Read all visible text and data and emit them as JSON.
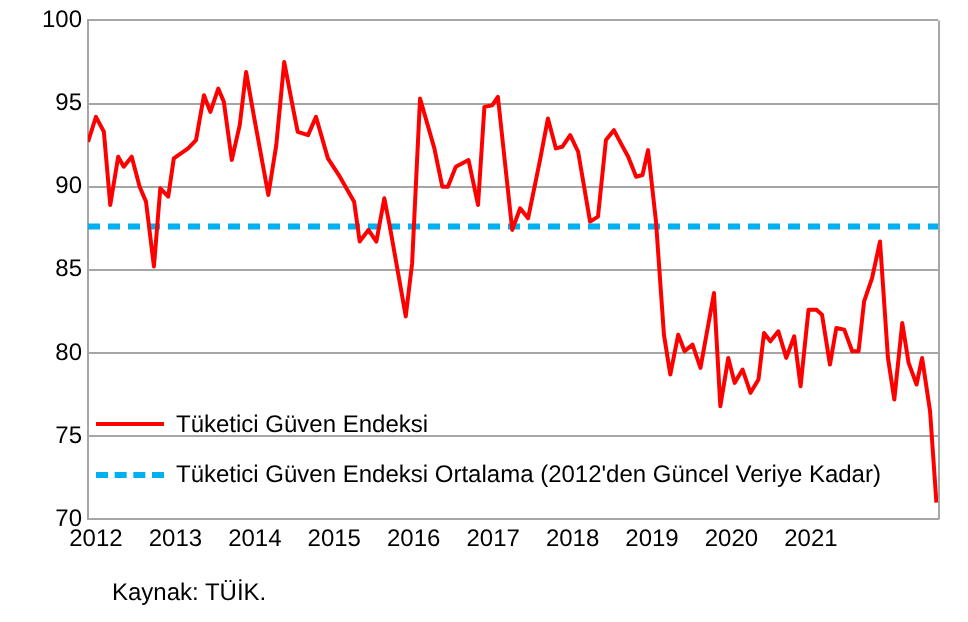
{
  "chart_data": {
    "type": "line",
    "xlim": [
      2011.9,
      2022.6
    ],
    "xticks": [
      2012,
      2013,
      2014,
      2015,
      2016,
      2017,
      2018,
      2019,
      2020,
      2021
    ],
    "ylim": [
      70,
      100
    ],
    "yticks": [
      70,
      75,
      80,
      85,
      90,
      95,
      100
    ],
    "grid": "y",
    "legend": "bottom left",
    "marker": "none",
    "line_style": "solid",
    "series": [
      {
        "name": "Tüketici Güven Endeksi",
        "color": "#ff0000",
        "x": [
          2011.9,
          2012.0,
          2012.1,
          2012.18,
          2012.28,
          2012.35,
          2012.45,
          2012.55,
          2012.63,
          2012.73,
          2012.81,
          2012.91,
          2012.98,
          2013.16,
          2013.26,
          2013.36,
          2013.44,
          2013.54,
          2013.61,
          2013.71,
          2013.81,
          2013.89,
          2013.99,
          2014.17,
          2014.27,
          2014.37,
          2014.47,
          2014.54,
          2014.67,
          2014.77,
          2014.92,
          2015.07,
          2015.25,
          2015.32,
          2015.43,
          2015.53,
          2015.63,
          2015.7,
          2015.9,
          2015.98,
          2016.08,
          2016.26,
          2016.36,
          2016.43,
          2016.53,
          2016.69,
          2016.81,
          2016.89,
          2016.99,
          2017.06,
          2017.24,
          2017.34,
          2017.44,
          2017.59,
          2017.69,
          2017.79,
          2017.87,
          2017.97,
          2018.07,
          2018.22,
          2018.32,
          2018.42,
          2018.52,
          2018.62,
          2018.7,
          2018.8,
          2018.88,
          2018.95,
          2019.05,
          2019.15,
          2019.23,
          2019.33,
          2019.41,
          2019.51,
          2019.61,
          2019.78,
          2019.86,
          2019.96,
          2020.04,
          2020.14,
          2020.24,
          2020.34,
          2020.41,
          2020.49,
          2020.59,
          2020.69,
          2020.79,
          2020.87,
          2020.97,
          2021.07,
          2021.14,
          2021.24,
          2021.32,
          2021.42,
          2021.52,
          2021.6,
          2021.67,
          2021.77,
          2021.87,
          2021.97,
          2022.05,
          2022.15,
          2022.23,
          2022.33,
          2022.4,
          2022.5,
          2022.58
        ],
        "values": [
          92.7,
          94.2,
          93.3,
          88.9,
          91.8,
          91.2,
          91.8,
          90.0,
          89.1,
          85.2,
          89.9,
          89.4,
          91.7,
          92.3,
          92.8,
          95.5,
          94.5,
          95.9,
          95.1,
          91.6,
          93.7,
          96.9,
          94.2,
          89.5,
          92.5,
          97.5,
          95.0,
          93.3,
          93.1,
          94.2,
          91.7,
          90.6,
          89.1,
          86.7,
          87.4,
          86.7,
          89.3,
          87.6,
          82.2,
          85.4,
          95.3,
          92.3,
          90.0,
          90.0,
          91.2,
          91.6,
          88.9,
          94.8,
          94.9,
          95.4,
          87.4,
          88.7,
          88.1,
          91.6,
          94.1,
          92.3,
          92.4,
          93.1,
          92.1,
          87.9,
          88.2,
          92.8,
          93.4,
          92.5,
          91.8,
          90.6,
          90.7,
          92.2,
          87.9,
          81.1,
          78.7,
          81.1,
          80.1,
          80.5,
          79.1,
          83.6,
          76.8,
          79.7,
          78.2,
          79.0,
          77.6,
          78.4,
          81.2,
          80.7,
          81.3,
          79.7,
          81.0,
          78.0,
          82.6,
          82.6,
          82.3,
          79.3,
          81.5,
          81.4,
          80.1,
          80.1,
          83.1,
          84.5,
          86.7,
          79.7,
          77.2,
          81.8,
          79.4,
          78.1,
          79.7,
          76.5,
          71.0
        ]
      }
    ],
    "ref_lines": [
      {
        "axis": "y",
        "value": 87.6,
        "label": "Tüketici Güven Endeksi Ortalama (2012'den Güncel Veriye Kadar)",
        "color": "#00b0f0",
        "line_style": "dashed"
      }
    ],
    "annotations": [
      "Kaynak: TÜİK."
    ]
  }
}
